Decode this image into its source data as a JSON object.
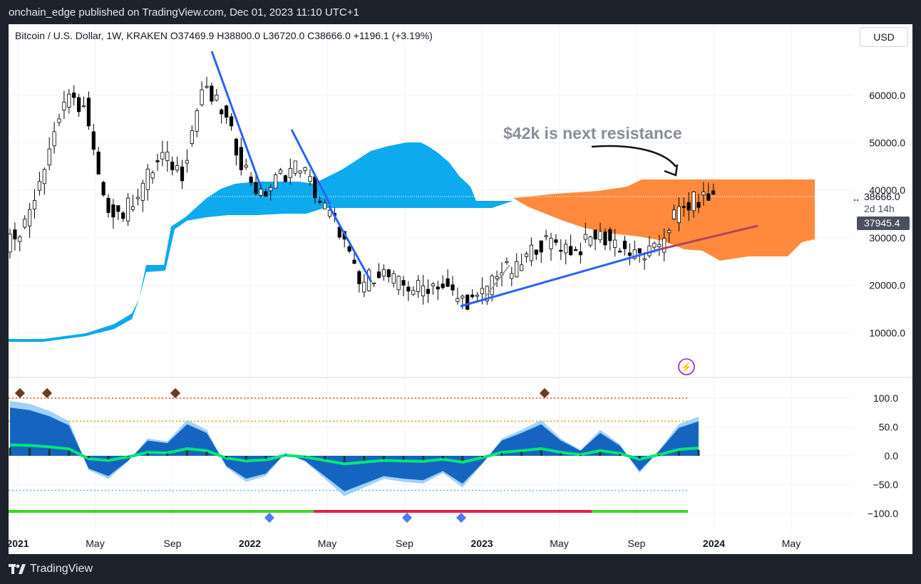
{
  "header": {
    "published": "onchain_edge published on TradingView.com, Dec 01, 2023 11:10 UTC+1"
  },
  "symbol_line": "Bitcoin / U.S. Dollar, 1W, KRAKEN  O37469.9  H38800.0  L36720.0  C38666.0  +1196.1 (+3.19%)",
  "currency_button": "USD",
  "footer": {
    "brand": "TradingView",
    "logo_icon": "tradingview-logo-icon"
  },
  "colors": {
    "cloud_bullish": "#00a5ec",
    "cloud_bearish": "#ff8a3d",
    "trendline": "#2962ff",
    "bull_candle": "#ffffff",
    "bear_candle": "#000000",
    "price_label": "#4a5060"
  },
  "chart_data": [
    {
      "type": "candlestick",
      "title": "Bitcoin / U.S. Dollar, 1W, KRAKEN",
      "ohlc_last": {
        "open": 37469.9,
        "high": 38800.0,
        "low": 36720.0,
        "close": 38666.0,
        "change": 1196.1,
        "change_pct": 3.19
      },
      "x_tick_labels": [
        "2021",
        "May",
        "Sep",
        "2022",
        "May",
        "Sep",
        "2023",
        "May",
        "Sep",
        "2024",
        "May"
      ],
      "y_tick_labels": [
        "60000.0",
        "50000.0",
        "40000.0",
        "30000.0",
        "20000.0",
        "10000.0"
      ],
      "y_ticks": [
        60000,
        50000,
        40000,
        30000,
        20000,
        10000
      ],
      "ylim": [
        0,
        70000
      ],
      "price_label": "38666.0",
      "countdown_label": "2d 14h",
      "secondary_price_label": "37945.4",
      "annotation": "$42k is next resistance",
      "closes": [
        {
          "date": "2021-01",
          "close": 33000
        },
        {
          "date": "2021-02",
          "close": 46000
        },
        {
          "date": "2021-03",
          "close": 58800
        },
        {
          "date": "2021-04",
          "close": 57700
        },
        {
          "date": "2021-05",
          "close": 37300
        },
        {
          "date": "2021-06",
          "close": 35000
        },
        {
          "date": "2021-07",
          "close": 41500
        },
        {
          "date": "2021-08",
          "close": 47100
        },
        {
          "date": "2021-09",
          "close": 43800
        },
        {
          "date": "2021-10",
          "close": 61300
        },
        {
          "date": "2021-11",
          "close": 57000
        },
        {
          "date": "2021-12",
          "close": 46300
        },
        {
          "date": "2022-01",
          "close": 38500
        },
        {
          "date": "2022-02",
          "close": 43200
        },
        {
          "date": "2022-03",
          "close": 45500
        },
        {
          "date": "2022-04",
          "close": 37700
        },
        {
          "date": "2022-05",
          "close": 31800
        },
        {
          "date": "2022-06",
          "close": 19900
        },
        {
          "date": "2022-07",
          "close": 23300
        },
        {
          "date": "2022-08",
          "close": 20100
        },
        {
          "date": "2022-09",
          "close": 19400
        },
        {
          "date": "2022-10",
          "close": 20500
        },
        {
          "date": "2022-11",
          "close": 17200
        },
        {
          "date": "2022-12",
          "close": 16500
        },
        {
          "date": "2023-01",
          "close": 23100
        },
        {
          "date": "2023-02",
          "close": 23100
        },
        {
          "date": "2023-03",
          "close": 28500
        },
        {
          "date": "2023-04",
          "close": 29200
        },
        {
          "date": "2023-05",
          "close": 27200
        },
        {
          "date": "2023-06",
          "close": 30500
        },
        {
          "date": "2023-07",
          "close": 29200
        },
        {
          "date": "2023-08",
          "close": 26000
        },
        {
          "date": "2023-09",
          "close": 27000
        },
        {
          "date": "2023-10",
          "close": 34600
        },
        {
          "date": "2023-11",
          "close": 37700
        },
        {
          "date": "2023-12",
          "close": 38666
        }
      ],
      "cloud": {
        "bullish_color": "#00a5ec",
        "bearish_color": "#ff8a3d",
        "resistance_level": 42000
      }
    },
    {
      "type": "oscillator",
      "y_tick_labels": [
        "100.0",
        "50.0",
        "0.0",
        "−50.0",
        "−100.0"
      ],
      "y_ticks": [
        100,
        50,
        0,
        -50,
        -100
      ],
      "ylim": [
        -110,
        110
      ],
      "levels": [
        100,
        60,
        -60
      ],
      "values": [
        {
          "date": "2021-01",
          "wave": 95
        },
        {
          "date": "2021-02",
          "wave": 90
        },
        {
          "date": "2021-03",
          "wave": 78
        },
        {
          "date": "2021-04",
          "wave": 60
        },
        {
          "date": "2021-05",
          "wave": -25
        },
        {
          "date": "2021-06",
          "wave": -40
        },
        {
          "date": "2021-07",
          "wave": -10
        },
        {
          "date": "2021-08",
          "wave": 30
        },
        {
          "date": "2021-09",
          "wave": 25
        },
        {
          "date": "2021-10",
          "wave": 62
        },
        {
          "date": "2021-11",
          "wave": 45
        },
        {
          "date": "2021-12",
          "wave": -20
        },
        {
          "date": "2022-01",
          "wave": -45
        },
        {
          "date": "2022-02",
          "wave": -35
        },
        {
          "date": "2022-03",
          "wave": 5
        },
        {
          "date": "2022-04",
          "wave": -10
        },
        {
          "date": "2022-05",
          "wave": -40
        },
        {
          "date": "2022-06",
          "wave": -70
        },
        {
          "date": "2022-07",
          "wave": -55
        },
        {
          "date": "2022-08",
          "wave": -40
        },
        {
          "date": "2022-09",
          "wave": -45
        },
        {
          "date": "2022-10",
          "wave": -48
        },
        {
          "date": "2022-11",
          "wave": -30
        },
        {
          "date": "2022-12",
          "wave": -55
        },
        {
          "date": "2023-01",
          "wave": -15
        },
        {
          "date": "2023-02",
          "wave": 30
        },
        {
          "date": "2023-03",
          "wave": 45
        },
        {
          "date": "2023-04",
          "wave": 62
        },
        {
          "date": "2023-05",
          "wave": 30
        },
        {
          "date": "2023-06",
          "wave": 10
        },
        {
          "date": "2023-07",
          "wave": 45
        },
        {
          "date": "2023-08",
          "wave": 20
        },
        {
          "date": "2023-09",
          "wave": -30
        },
        {
          "date": "2023-10",
          "wave": 10
        },
        {
          "date": "2023-11",
          "wave": 55
        },
        {
          "date": "2023-12",
          "wave": 68
        }
      ]
    }
  ]
}
